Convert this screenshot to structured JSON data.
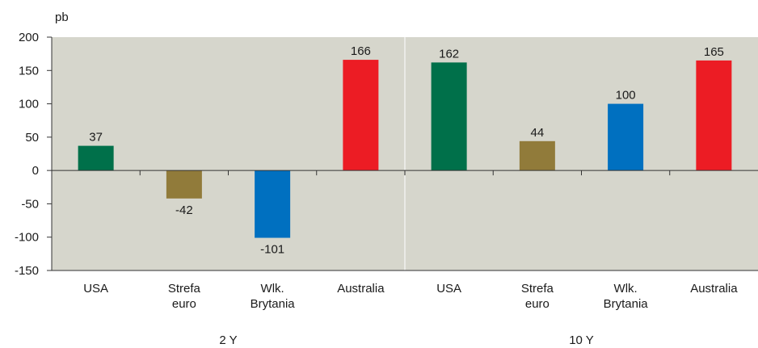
{
  "chart_data": {
    "type": "bar",
    "ylabel": "pb",
    "ylim": [
      -150,
      200
    ],
    "yticks": [
      200,
      150,
      100,
      50,
      0,
      -50,
      -100,
      -150
    ],
    "categories": [
      [
        "USA"
      ],
      [
        "Strefa",
        "euro"
      ],
      [
        "Wlk.",
        "Brytania"
      ],
      [
        "Australia"
      ],
      [
        "USA"
      ],
      [
        "Strefa",
        "euro"
      ],
      [
        "Wlk.",
        "Brytania"
      ],
      [
        "Australia"
      ]
    ],
    "values": [
      37,
      -42,
      -101,
      166,
      162,
      44,
      100,
      165
    ],
    "value_labels": [
      "37",
      "-42",
      "-101",
      "166",
      "162",
      "44",
      "100",
      "165"
    ],
    "groups": [
      {
        "label": "2 Y",
        "start": 0,
        "end": 3
      },
      {
        "label": "10 Y",
        "start": 4,
        "end": 7
      }
    ],
    "colors": [
      "#00704a",
      "#917b3a",
      "#0070c0",
      "#ec1c24",
      "#00704a",
      "#917b3a",
      "#0070c0",
      "#ec1c24"
    ],
    "plot_background": "#d6d6cc",
    "grid": false
  }
}
